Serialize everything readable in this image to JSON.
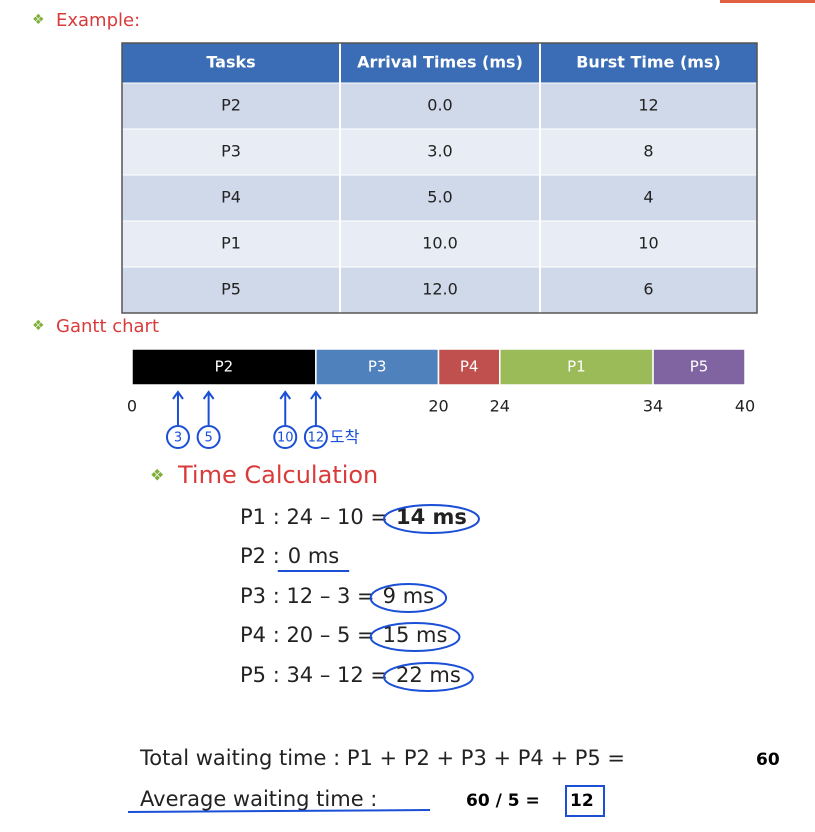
{
  "header": {
    "title": "Example:"
  },
  "table": {
    "columns": [
      "Tasks",
      "Arrival Times (ms)",
      "Burst Time (ms)"
    ],
    "rows": [
      [
        "P2",
        "0.0",
        "12"
      ],
      [
        "P3",
        "3.0",
        "8"
      ],
      [
        "P4",
        "5.0",
        "4"
      ],
      [
        "P1",
        "10.0",
        "10"
      ],
      [
        "P5",
        "12.0",
        "6"
      ]
    ]
  },
  "gantt": {
    "title": "Gantt chart",
    "range": [
      0,
      40
    ],
    "segments": [
      {
        "label": "P2",
        "start": 0,
        "end": 12,
        "color": "#000000"
      },
      {
        "label": "P3",
        "start": 12,
        "end": 20,
        "color": "#4f81bd"
      },
      {
        "label": "P4",
        "start": 20,
        "end": 24,
        "color": "#c0504d"
      },
      {
        "label": "P1",
        "start": 24,
        "end": 34,
        "color": "#9bbb59"
      },
      {
        "label": "P5",
        "start": 34,
        "end": 40,
        "color": "#8064a2"
      }
    ],
    "ticks": [
      0,
      20,
      24,
      34,
      40
    ],
    "arrivals": [
      3,
      5,
      10,
      12
    ],
    "arrival_note": "도착"
  },
  "calculation": {
    "title": "Time Calculation",
    "lines": [
      {
        "expr": "P1 : 24 – 10 =",
        "result": "14 ms"
      },
      {
        "expr": "P2 :",
        "result": "0  ms"
      },
      {
        "expr": "P3 : 12 – 3 =",
        "result": "9 ms"
      },
      {
        "expr": "P4 : 20 – 5 =",
        "result": "15 ms"
      },
      {
        "expr": "P5 : 34 – 12 =",
        "result": "22 ms"
      }
    ]
  },
  "summary": {
    "total_label": "Total waiting time : P1 + P2 + P3 + P4 + P5 =",
    "total_value": "60",
    "average_label": "Average waiting time :",
    "average_expr": "60 / 5 =",
    "average_value": "12"
  }
}
